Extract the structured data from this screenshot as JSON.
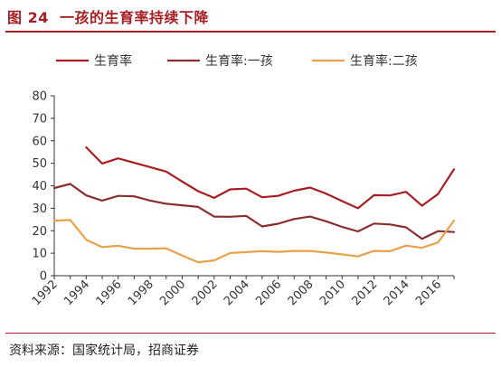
{
  "header": {
    "figure_label": "图 24",
    "title": "一孩的生育率持续下降"
  },
  "footer": {
    "source": "资料来源：国家统计局，招商证券"
  },
  "chart_data": {
    "type": "line",
    "title": "一孩的生育率持续下降",
    "xlabel": "",
    "ylabel": "",
    "ylim": [
      0,
      80
    ],
    "yticks": [
      0,
      10,
      20,
      30,
      40,
      50,
      60,
      70,
      80
    ],
    "xticks": [
      "1992",
      "1994",
      "1996",
      "1998",
      "2000",
      "2002",
      "2004",
      "2006",
      "2008",
      "2010",
      "2012",
      "2014",
      "2016"
    ],
    "grid": false,
    "legend_position": "top",
    "x": [
      1992,
      1993,
      1994,
      1995,
      1996,
      1997,
      1998,
      1999,
      2000,
      2001,
      2002,
      2003,
      2004,
      2005,
      2006,
      2007,
      2008,
      2009,
      2010,
      2011,
      2012,
      2013,
      2014,
      2015,
      2016,
      2017
    ],
    "series": [
      {
        "name": "生育率",
        "color": "#a61e22",
        "values": [
          null,
          null,
          57.1,
          49.9,
          52.2,
          50.2,
          48.3,
          46.3,
          41.9,
          37.6,
          34.6,
          38.4,
          38.7,
          34.9,
          35.5,
          37.8,
          39.2,
          36.5,
          33.2,
          30.0,
          35.8,
          35.7,
          37.3,
          31.1,
          36.3,
          47.3
        ]
      },
      {
        "name": "生育率:一孩",
        "color": "#8b2e2e",
        "values": [
          39.0,
          40.8,
          35.7,
          33.4,
          35.5,
          35.3,
          33.4,
          32.0,
          31.3,
          30.6,
          26.3,
          26.2,
          26.6,
          21.9,
          23.1,
          25.2,
          26.3,
          24.2,
          21.7,
          19.7,
          23.2,
          22.8,
          21.5,
          16.4,
          19.8,
          19.4
        ]
      },
      {
        "name": "生育率:二孩",
        "color": "#e8a24a",
        "values": [
          24.5,
          24.8,
          16.0,
          12.7,
          13.3,
          12.0,
          12.0,
          12.2,
          9.0,
          6.0,
          6.8,
          10.1,
          10.5,
          10.9,
          10.6,
          11.0,
          11.0,
          10.3,
          9.5,
          8.6,
          11.0,
          10.9,
          13.4,
          12.4,
          14.8,
          24.5
        ]
      }
    ]
  }
}
